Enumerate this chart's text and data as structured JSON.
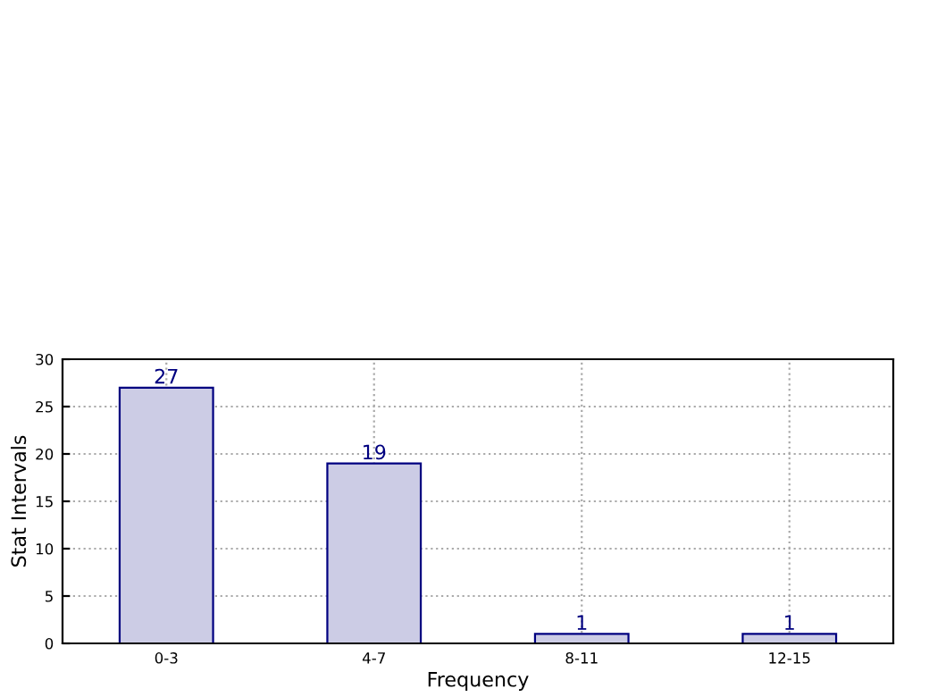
{
  "chart_data": {
    "type": "bar",
    "xlabel": "Frequency",
    "ylabel": "Stat Intervals",
    "categories": [
      "0-3",
      "4-7",
      "8-11",
      "12-15"
    ],
    "series": [
      {
        "color": "#ccccE5",
        "values": [
          27,
          19,
          1,
          1
        ]
      }
    ],
    "ylim": [
      0,
      30
    ],
    "yticks": [
      0,
      5,
      10,
      15,
      20,
      25,
      30
    ],
    "grid": true,
    "data_labels": true
  }
}
